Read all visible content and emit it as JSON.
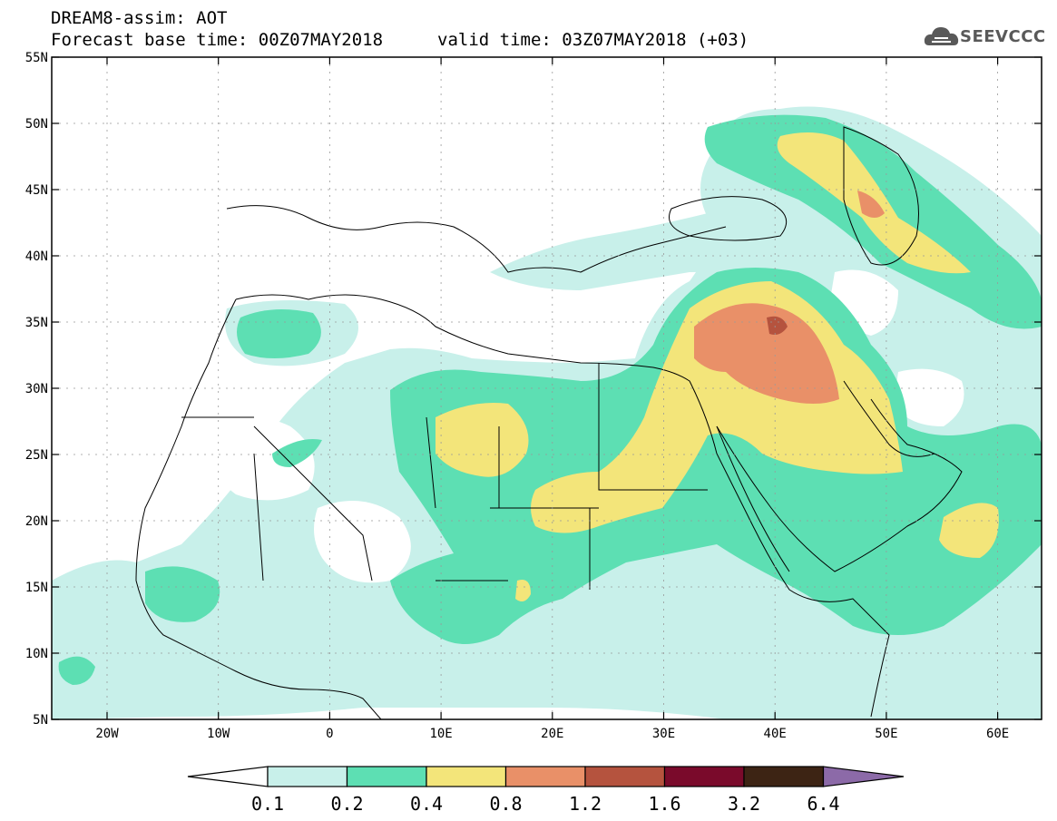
{
  "header": {
    "title": "DREAM8-assim: AOT",
    "base_time": "Forecast base time: 00Z07MAY2018",
    "valid_time": "valid time: 03Z07MAY2018 (+03)"
  },
  "logo": {
    "text": "SEEVCCC",
    "icon": "cloud-logo-icon"
  },
  "map": {
    "lat_labels": [
      "55N",
      "50N",
      "45N",
      "40N",
      "35N",
      "30N",
      "25N",
      "20N",
      "15N",
      "10N",
      "5N"
    ],
    "lon_labels": [
      "20W",
      "10W",
      "0",
      "10E",
      "20E",
      "30E",
      "40E",
      "50E",
      "60E"
    ]
  },
  "colorbar": {
    "labels": [
      "0.1",
      "0.2",
      "0.4",
      "0.8",
      "1.2",
      "1.6",
      "3.2",
      "6.4"
    ],
    "colors": [
      "#c8f0ea",
      "#5ddfb3",
      "#f3e57a",
      "#e99068",
      "#b5533e",
      "#7a0a2b",
      "#3d2414",
      "#8c6aa8"
    ],
    "under_color": "#ffffff"
  }
}
